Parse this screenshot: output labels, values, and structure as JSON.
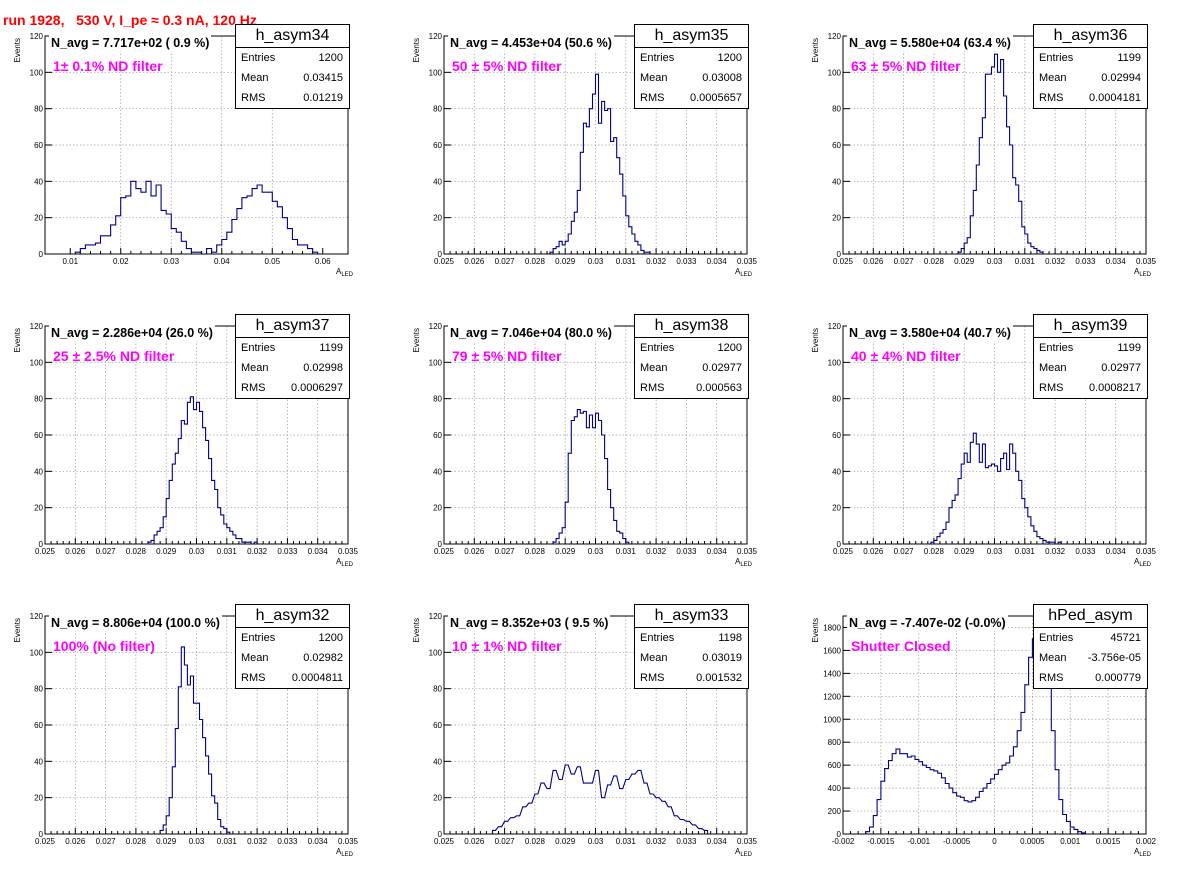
{
  "page_title": "run 1928,   530 V, I_pe ≈ 0.3 nA, 120 Hz",
  "colors": {
    "title": "#ff0000",
    "filter_label": "#ff00ff",
    "histogram": "#00008b"
  },
  "x_axis_label": "A",
  "x_axis_subscript": "LED",
  "y_axis_label": "Events",
  "stat_labels": {
    "entries": "Entries",
    "mean": "Mean",
    "rms": "RMS"
  },
  "chart_data": [
    {
      "type": "bar",
      "name": "h_asym34",
      "navg": "N_avg = 7.717e+02 ( 0.9 %)",
      "filter_label": "1± 0.1% ND filter",
      "stats": {
        "entries": "1200",
        "mean": "0.03415",
        "rms": "0.01219"
      },
      "xlim": [
        0.005,
        0.065
      ],
      "ylim": [
        0,
        120
      ],
      "xticks": [
        "0.01",
        "0.02",
        "0.03",
        "0.04",
        "0.05",
        "0.06"
      ],
      "yticks": [
        "0",
        "20",
        "40",
        "60",
        "80",
        "100",
        "120"
      ],
      "bin_width": 0.001,
      "x": [
        0.01,
        0.011,
        0.012,
        0.013,
        0.014,
        0.015,
        0.016,
        0.017,
        0.018,
        0.019,
        0.02,
        0.021,
        0.022,
        0.023,
        0.024,
        0.025,
        0.026,
        0.027,
        0.028,
        0.029,
        0.03,
        0.031,
        0.032,
        0.033,
        0.034,
        0.035,
        0.036,
        0.037,
        0.038,
        0.039,
        0.04,
        0.041,
        0.042,
        0.043,
        0.044,
        0.045,
        0.046,
        0.047,
        0.048,
        0.049,
        0.05,
        0.051,
        0.052,
        0.053,
        0.054,
        0.055,
        0.056,
        0.057,
        0.058
      ],
      "values": [
        0,
        1,
        3,
        5,
        5,
        6,
        10,
        10,
        16,
        21,
        31,
        32,
        40,
        36,
        34,
        40,
        32,
        38,
        24,
        22,
        14,
        12,
        7,
        3,
        1,
        1,
        0,
        3,
        1,
        5,
        8,
        12,
        19,
        25,
        31,
        32,
        36,
        38,
        34,
        34,
        29,
        26,
        20,
        14,
        8,
        5,
        5,
        3,
        1
      ]
    },
    {
      "type": "bar",
      "name": "h_asym35",
      "navg": "N_avg = 4.453e+04 (50.6 %)",
      "filter_label": "50 ± 5% ND filter",
      "stats": {
        "entries": "1200",
        "mean": "0.03008",
        "rms": "0.0005657"
      },
      "xlim": [
        0.025,
        0.035
      ],
      "ylim": [
        0,
        120
      ],
      "xticks": [
        "0.025",
        "0.026",
        "0.027",
        "0.028",
        "0.029",
        "0.03",
        "0.031",
        "0.032",
        "0.033",
        "0.034",
        "0.035"
      ],
      "yticks": [
        "0",
        "20",
        "40",
        "60",
        "80",
        "100",
        "120"
      ],
      "bin_width": 0.0001,
      "x": [
        0.0284,
        0.0285,
        0.0286,
        0.0287,
        0.0288,
        0.0289,
        0.029,
        0.0291,
        0.0292,
        0.0293,
        0.0294,
        0.0295,
        0.0296,
        0.0297,
        0.0298,
        0.0299,
        0.03,
        0.0301,
        0.0302,
        0.0303,
        0.0304,
        0.0305,
        0.0306,
        0.0307,
        0.0308,
        0.0309,
        0.031,
        0.0311,
        0.0312,
        0.0313,
        0.0314,
        0.0315,
        0.0316,
        0.0317
      ],
      "values": [
        0,
        1,
        3,
        4,
        7,
        5,
        7,
        11,
        18,
        23,
        35,
        56,
        72,
        70,
        80,
        88,
        99,
        72,
        84,
        79,
        80,
        62,
        64,
        53,
        44,
        32,
        21,
        15,
        11,
        7,
        5,
        2,
        1,
        1
      ]
    },
    {
      "type": "bar",
      "name": "h_asym36",
      "navg": "N_avg = 5.580e+04 (63.4 %)",
      "filter_label": "63 ± 5% ND filter",
      "stats": {
        "entries": "1199",
        "mean": "0.02994",
        "rms": "0.0004181"
      },
      "xlim": [
        0.025,
        0.035
      ],
      "ylim": [
        0,
        120
      ],
      "xticks": [
        "0.025",
        "0.026",
        "0.027",
        "0.028",
        "0.029",
        "0.03",
        "0.031",
        "0.032",
        "0.033",
        "0.034",
        "0.035"
      ],
      "yticks": [
        "0",
        "20",
        "40",
        "60",
        "80",
        "100",
        "120"
      ],
      "bin_width": 0.0001,
      "x": [
        0.0287,
        0.0288,
        0.0289,
        0.029,
        0.0291,
        0.0292,
        0.0293,
        0.0294,
        0.0295,
        0.0296,
        0.0297,
        0.0298,
        0.0299,
        0.03,
        0.0301,
        0.0302,
        0.0303,
        0.0304,
        0.0305,
        0.0306,
        0.0307,
        0.0308,
        0.0309,
        0.031,
        0.0311,
        0.0312,
        0.0313,
        0.0314,
        0.0315
      ],
      "values": [
        0,
        1,
        3,
        6,
        9,
        21,
        35,
        49,
        64,
        75,
        99,
        99,
        103,
        110,
        100,
        107,
        87,
        70,
        60,
        42,
        38,
        29,
        15,
        11,
        6,
        4,
        3,
        2,
        1
      ]
    },
    {
      "type": "bar",
      "name": "h_asym37",
      "navg": "N_avg = 2.286e+04 (26.0 %)",
      "filter_label": "25 ± 2.5% ND filter",
      "stats": {
        "entries": "1199",
        "mean": "0.02998",
        "rms": "0.0006297"
      },
      "xlim": [
        0.025,
        0.035
      ],
      "ylim": [
        0,
        120
      ],
      "xticks": [
        "0.025",
        "0.026",
        "0.027",
        "0.028",
        "0.029",
        "0.03",
        "0.031",
        "0.032",
        "0.033",
        "0.034",
        "0.035"
      ],
      "yticks": [
        "0",
        "20",
        "40",
        "60",
        "80",
        "100",
        "120"
      ],
      "bin_width": 0.0001,
      "x": [
        0.0283,
        0.0284,
        0.0285,
        0.0286,
        0.0287,
        0.0288,
        0.0289,
        0.029,
        0.0291,
        0.0292,
        0.0293,
        0.0294,
        0.0295,
        0.0296,
        0.0297,
        0.0298,
        0.0299,
        0.03,
        0.0301,
        0.0302,
        0.0303,
        0.0304,
        0.0305,
        0.0306,
        0.0307,
        0.0308,
        0.0309,
        0.031,
        0.0311,
        0.0312,
        0.0313,
        0.0314,
        0.0315,
        0.0316,
        0.0317,
        0.0318,
        0.0319
      ],
      "values": [
        0,
        1,
        2,
        5,
        7,
        9,
        15,
        25,
        35,
        44,
        50,
        58,
        68,
        66,
        78,
        81,
        74,
        78,
        73,
        64,
        57,
        47,
        35,
        30,
        20,
        16,
        11,
        9,
        7,
        5,
        3,
        3,
        1,
        1,
        1,
        0,
        1
      ]
    },
    {
      "type": "bar",
      "name": "h_asym38",
      "navg": "N_avg = 7.046e+04 (80.0 %)",
      "filter_label": "79 ± 5% ND filter",
      "stats": {
        "entries": "1200",
        "mean": "0.02977",
        "rms": "0.000563"
      },
      "xlim": [
        0.025,
        0.035
      ],
      "ylim": [
        0,
        120
      ],
      "xticks": [
        "0.025",
        "0.026",
        "0.027",
        "0.028",
        "0.029",
        "0.03",
        "0.031",
        "0.032",
        "0.033",
        "0.034",
        "0.035"
      ],
      "yticks": [
        "0",
        "20",
        "40",
        "60",
        "80",
        "100",
        "120"
      ],
      "bin_width": 0.0001,
      "x": [
        0.0285,
        0.0286,
        0.0287,
        0.0288,
        0.0289,
        0.029,
        0.0291,
        0.0292,
        0.0293,
        0.0294,
        0.0295,
        0.0296,
        0.0297,
        0.0298,
        0.0299,
        0.03,
        0.0301,
        0.0302,
        0.0303,
        0.0304,
        0.0305,
        0.0306,
        0.0307,
        0.0308,
        0.0309,
        0.031,
        0.0311
      ],
      "values": [
        0,
        1,
        3,
        6,
        9,
        23,
        50,
        68,
        70,
        74,
        72,
        73,
        64,
        71,
        64,
        72,
        68,
        60,
        47,
        30,
        20,
        13,
        7,
        6,
        3,
        1,
        0
      ]
    },
    {
      "type": "bar",
      "name": "h_asym39",
      "navg": "N_avg = 3.580e+04 (40.7 %)",
      "filter_label": "40 ± 4% ND filter",
      "stats": {
        "entries": "1199",
        "mean": "0.02977",
        "rms": "0.0008217"
      },
      "xlim": [
        0.025,
        0.035
      ],
      "ylim": [
        0,
        120
      ],
      "xticks": [
        "0.025",
        "0.026",
        "0.027",
        "0.028",
        "0.029",
        "0.03",
        "0.031",
        "0.032",
        "0.033",
        "0.034",
        "0.035"
      ],
      "yticks": [
        "0",
        "20",
        "40",
        "60",
        "80",
        "100",
        "120"
      ],
      "bin_width": 0.0001,
      "x": [
        0.0279,
        0.028,
        0.0281,
        0.0282,
        0.0283,
        0.0284,
        0.0285,
        0.0286,
        0.0287,
        0.0288,
        0.0289,
        0.029,
        0.0291,
        0.0292,
        0.0293,
        0.0294,
        0.0295,
        0.0296,
        0.0297,
        0.0298,
        0.0299,
        0.03,
        0.0301,
        0.0302,
        0.0303,
        0.0304,
        0.0305,
        0.0306,
        0.0307,
        0.0308,
        0.0309,
        0.031,
        0.0311,
        0.0312,
        0.0313,
        0.0314,
        0.0315,
        0.0316,
        0.0317,
        0.0318,
        0.0319,
        0.032,
        0.0321,
        0.0322
      ],
      "values": [
        1,
        2,
        4,
        6,
        8,
        12,
        20,
        24,
        27,
        36,
        44,
        50,
        45,
        56,
        61,
        55,
        45,
        55,
        42,
        43,
        44,
        43,
        40,
        47,
        50,
        41,
        55,
        50,
        40,
        35,
        25,
        20,
        15,
        10,
        7,
        4,
        3,
        2,
        1,
        1,
        1,
        0,
        1,
        0
      ]
    },
    {
      "type": "bar",
      "name": "h_asym32",
      "navg": "N_avg = 8.806e+04 (100.0 %)",
      "filter_label": "100% (No filter)",
      "stats": {
        "entries": "1200",
        "mean": "0.02982",
        "rms": "0.0004811"
      },
      "xlim": [
        0.025,
        0.035
      ],
      "ylim": [
        0,
        120
      ],
      "xticks": [
        "0.025",
        "0.026",
        "0.027",
        "0.028",
        "0.029",
        "0.03",
        "0.031",
        "0.032",
        "0.033",
        "0.034",
        "0.035"
      ],
      "yticks": [
        "0",
        "20",
        "40",
        "60",
        "80",
        "100",
        "120"
      ],
      "bin_width": 0.0001,
      "x": [
        0.0287,
        0.0288,
        0.0289,
        0.029,
        0.0291,
        0.0292,
        0.0293,
        0.0294,
        0.0295,
        0.0296,
        0.0297,
        0.0298,
        0.0299,
        0.03,
        0.0301,
        0.0302,
        0.0303,
        0.0304,
        0.0305,
        0.0306,
        0.0307,
        0.0308,
        0.0309,
        0.031,
        0.0311
      ],
      "values": [
        0,
        2,
        5,
        10,
        20,
        37,
        58,
        81,
        103,
        93,
        82,
        87,
        72,
        72,
        63,
        53,
        43,
        33,
        21,
        17,
        8,
        4,
        3,
        1,
        0
      ]
    },
    {
      "type": "bar",
      "name": "h_asym33",
      "navg": "N_avg = 8.352e+03 ( 9.5 %)",
      "filter_label": "10 ± 1% ND filter",
      "stats": {
        "entries": "1198",
        "mean": "0.03019",
        "rms": "0.001532"
      },
      "xlim": [
        0.025,
        0.035
      ],
      "ylim": [
        0,
        120
      ],
      "xticks": [
        "0.025",
        "0.026",
        "0.027",
        "0.028",
        "0.029",
        "0.03",
        "0.031",
        "0.032",
        "0.033",
        "0.034",
        "0.035"
      ],
      "yticks": [
        "0",
        "20",
        "40",
        "60",
        "80",
        "100",
        "120"
      ],
      "bin_width": 0.0001,
      "x": [
        0.0266,
        0.0268,
        0.027,
        0.0272,
        0.0274,
        0.0276,
        0.0278,
        0.028,
        0.0282,
        0.0284,
        0.0286,
        0.0288,
        0.029,
        0.0292,
        0.0294,
        0.0296,
        0.0298,
        0.03,
        0.0302,
        0.0304,
        0.0306,
        0.0308,
        0.031,
        0.0312,
        0.0314,
        0.0316,
        0.0318,
        0.032,
        0.0322,
        0.0324,
        0.0326,
        0.0328,
        0.033,
        0.0332,
        0.0334,
        0.0336
      ],
      "values": [
        2,
        4,
        7,
        9,
        10,
        15,
        17,
        22,
        28,
        25,
        35,
        30,
        38,
        33,
        37,
        28,
        28,
        35,
        20,
        27,
        32,
        25,
        30,
        33,
        35,
        28,
        22,
        20,
        18,
        15,
        10,
        8,
        7,
        5,
        3,
        2
      ]
    },
    {
      "type": "bar",
      "name": "hPed_asym",
      "navg": "N_avg = -7.407e-02 (-0.0%)",
      "filter_label": "Shutter Closed",
      "stats": {
        "entries": "45721",
        "mean": "-3.756e-05",
        "rms": "0.000779"
      },
      "xlim": [
        -0.002,
        0.002
      ],
      "ylim": [
        0,
        1900
      ],
      "xticks": [
        "-0.002",
        "-0.0015",
        "-0.001",
        "-0.0005",
        "0",
        "0.0005",
        "0.001",
        "0.0015",
        "0.002"
      ],
      "xtick_values": [
        -0.002,
        -0.0015,
        -0.001,
        -0.0005,
        0,
        0.0005,
        0.001,
        0.0015,
        0.002
      ],
      "yticks": [
        "0",
        "200",
        "400",
        "600",
        "800",
        "1000",
        "1200",
        "1400",
        "1600",
        "1800"
      ],
      "bin_width": 5e-05,
      "x": [
        -0.0017,
        -0.00165,
        -0.0016,
        -0.00155,
        -0.0015,
        -0.00145,
        -0.0014,
        -0.00135,
        -0.0013,
        -0.00125,
        -0.0012,
        -0.00115,
        -0.0011,
        -0.00105,
        -0.001,
        -0.00095,
        -0.0009,
        -0.00085,
        -0.0008,
        -0.00075,
        -0.0007,
        -0.00065,
        -0.0006,
        -0.00055,
        -0.0005,
        -0.00045,
        -0.0004,
        -0.00035,
        -0.0003,
        -0.00025,
        -0.0002,
        -0.00015,
        -0.0001,
        -5e-05,
        0,
        5e-05,
        0.0001,
        0.00015,
        0.0002,
        0.00025,
        0.0003,
        0.00035,
        0.0004,
        0.00045,
        0.0005,
        0.00055,
        0.0006,
        0.00065,
        0.0007,
        0.00075,
        0.0008,
        0.00085,
        0.0009,
        0.00095,
        0.001,
        0.00105,
        0.0011,
        0.00115,
        0.0012
      ],
      "values": [
        20,
        60,
        160,
        300,
        460,
        570,
        640,
        700,
        740,
        700,
        700,
        670,
        680,
        650,
        630,
        600,
        580,
        560,
        550,
        530,
        490,
        440,
        400,
        360,
        330,
        320,
        290,
        280,
        290,
        320,
        370,
        400,
        440,
        480,
        520,
        560,
        600,
        620,
        680,
        760,
        900,
        1060,
        1300,
        1540,
        1700,
        1800,
        1780,
        1600,
        1300,
        900,
        560,
        300,
        170,
        110,
        60,
        40,
        20,
        10,
        0
      ]
    }
  ]
}
